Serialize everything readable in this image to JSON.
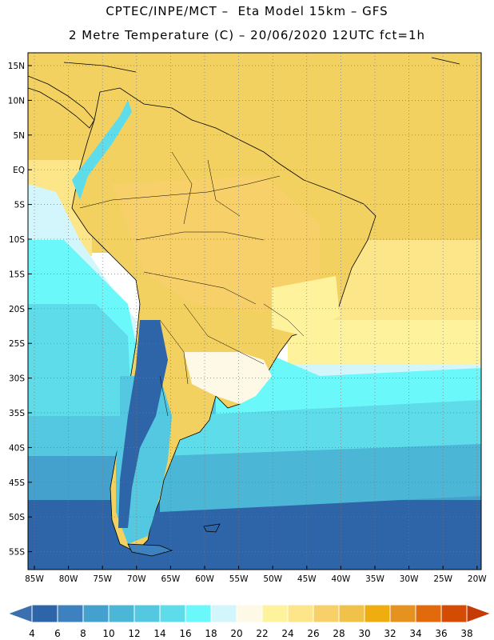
{
  "header": {
    "line1": "CPTEC/INPE/MCT –  Eta Model 15km – GFS",
    "line2": "2 Metre Temperature (C) – 20/06/2020 12UTC fct=1h"
  },
  "map": {
    "lat_labels": [
      "15N",
      "10N",
      "5N",
      "EQ",
      "5S",
      "10S",
      "15S",
      "20S",
      "25S",
      "30S",
      "35S",
      "40S",
      "45S",
      "50S",
      "55S"
    ],
    "lon_labels": [
      "85W",
      "80W",
      "75W",
      "70W",
      "65W",
      "60W",
      "55W",
      "50W",
      "45W",
      "40W",
      "35W",
      "30W",
      "25W",
      "20W"
    ]
  },
  "colorbar": {
    "labels": [
      "4",
      "6",
      "8",
      "10",
      "12",
      "14",
      "16",
      "18",
      "20",
      "22",
      "24",
      "26",
      "28",
      "30",
      "32",
      "34",
      "36",
      "38"
    ],
    "colors": [
      "#3b6fb0",
      "#2e64a8",
      "#3d82be",
      "#44a0cc",
      "#4bb6d6",
      "#54c8e0",
      "#5fdcea",
      "#6af8fa",
      "#d2f6fc",
      "#fef9e6",
      "#fef39c",
      "#fde58a",
      "#f8d06a",
      "#f0c24a",
      "#efad10",
      "#e69220",
      "#e26a0c",
      "#d44c04",
      "#c63a03"
    ]
  },
  "colors": {
    "border": "#000000",
    "grid": "#555555",
    "land_outline": "#000000"
  }
}
